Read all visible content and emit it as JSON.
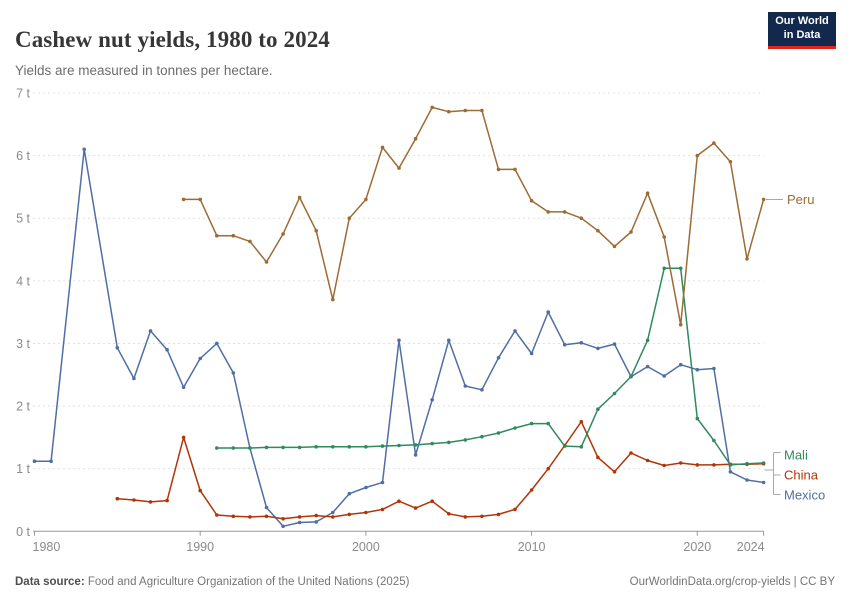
{
  "header": {
    "title": "Cashew nut yields, 1980 to 2024",
    "subtitle": "Yields are measured in tonnes per hectare."
  },
  "logo": {
    "line1": "Our World",
    "line2": "in Data",
    "bg_color": "#12294D",
    "accent_color": "#E0261C"
  },
  "footer": {
    "source_label": "Data source:",
    "source_text": " Food and Agriculture Organization of the United Nations (2025)",
    "right_text": "OurWorldinData.org/crop-yields | CC BY"
  },
  "chart_data": {
    "type": "line",
    "title": "Cashew nut yields, 1980 to 2024",
    "unit": "t",
    "ylabel": "tonnes per hectare",
    "ylim": [
      0,
      7
    ],
    "yticks": [
      0,
      1,
      2,
      3,
      4,
      5,
      6,
      7
    ],
    "ytick_suffix": " t",
    "xlim": [
      1980,
      2024
    ],
    "xticks": [
      1980,
      1990,
      2000,
      2010,
      2020,
      2024
    ],
    "grid": "horizontal-dashed",
    "legend_position": "right-end-labels",
    "axis_color": "#9a9a9a",
    "grid_color": "#e0e0e0",
    "tick_label_color": "#8a8a8a",
    "series": [
      {
        "name": "Mexico",
        "color": "#4F6FA4",
        "x": [
          1980,
          1981,
          1983,
          1985,
          1986,
          1987,
          1988,
          1989,
          1990,
          1991,
          1992,
          1993,
          1994,
          1995,
          1996,
          1997,
          1998,
          1999,
          2000,
          2001,
          2002,
          2003,
          2004,
          2005,
          2006,
          2007,
          2008,
          2009,
          2010,
          2011,
          2012,
          2013,
          2014,
          2015,
          2016,
          2017,
          2018,
          2019,
          2020,
          2021,
          2022,
          2023,
          2024
        ],
        "values": [
          1.12,
          1.12,
          6.1,
          2.93,
          2.44,
          3.2,
          2.9,
          2.3,
          2.76,
          3.0,
          2.53,
          1.33,
          0.38,
          0.08,
          0.14,
          0.15,
          0.3,
          0.6,
          0.7,
          0.78,
          3.05,
          1.22,
          2.1,
          3.05,
          2.32,
          2.26,
          2.77,
          3.2,
          2.84,
          3.5,
          2.98,
          3.01,
          2.92,
          2.99,
          2.47,
          2.63,
          2.48,
          2.66,
          2.58,
          2.6,
          0.95,
          0.82,
          0.78
        ]
      },
      {
        "name": "China",
        "color": "#B13507",
        "x": [
          1985,
          1986,
          1987,
          1988,
          1989,
          1990,
          1991,
          1992,
          1993,
          1994,
          1995,
          1996,
          1997,
          1998,
          1999,
          2000,
          2001,
          2002,
          2003,
          2004,
          2005,
          2006,
          2007,
          2008,
          2009,
          2010,
          2011,
          2012,
          2013,
          2014,
          2015,
          2016,
          2017,
          2018,
          2019,
          2020,
          2021,
          2022,
          2023,
          2024
        ],
        "values": [
          0.52,
          0.5,
          0.47,
          0.49,
          1.5,
          0.65,
          0.26,
          0.24,
          0.23,
          0.24,
          0.2,
          0.23,
          0.25,
          0.23,
          0.27,
          0.3,
          0.35,
          0.48,
          0.37,
          0.48,
          0.28,
          0.23,
          0.24,
          0.27,
          0.35,
          0.66,
          1.0,
          1.37,
          1.75,
          1.18,
          0.95,
          1.25,
          1.13,
          1.05,
          1.09,
          1.06,
          1.06,
          1.07,
          1.07,
          1.08
        ]
      },
      {
        "name": "Mali",
        "color": "#2F8A5E",
        "x": [
          1991,
          1992,
          1993,
          1994,
          1995,
          1996,
          1997,
          1998,
          1999,
          2000,
          2001,
          2002,
          2003,
          2004,
          2005,
          2006,
          2007,
          2008,
          2009,
          2010,
          2011,
          2012,
          2013,
          2014,
          2015,
          2016,
          2017,
          2018,
          2019,
          2020,
          2021,
          2022,
          2023,
          2024
        ],
        "values": [
          1.33,
          1.33,
          1.33,
          1.34,
          1.34,
          1.34,
          1.35,
          1.35,
          1.35,
          1.35,
          1.36,
          1.37,
          1.38,
          1.4,
          1.42,
          1.46,
          1.51,
          1.57,
          1.65,
          1.72,
          1.72,
          1.36,
          1.35,
          1.95,
          2.2,
          2.47,
          3.05,
          4.2,
          4.2,
          1.8,
          1.45,
          1.06,
          1.08,
          1.09
        ]
      },
      {
        "name": "Peru",
        "color": "#9D6B35",
        "x": [
          1989,
          1990,
          1991,
          1992,
          1993,
          1994,
          1995,
          1996,
          1997,
          1998,
          1999,
          2000,
          2001,
          2002,
          2003,
          2004,
          2005,
          2006,
          2007,
          2008,
          2009,
          2010,
          2011,
          2012,
          2013,
          2014,
          2015,
          2016,
          2017,
          2018,
          2019,
          2020,
          2021,
          2022,
          2023,
          2024
        ],
        "values": [
          5.3,
          5.3,
          4.72,
          4.72,
          4.63,
          4.3,
          4.75,
          5.33,
          4.8,
          3.7,
          5.0,
          5.3,
          6.13,
          5.8,
          6.27,
          6.77,
          6.7,
          6.72,
          6.72,
          5.78,
          5.78,
          5.28,
          5.1,
          5.1,
          5.0,
          4.8,
          4.55,
          4.78,
          5.4,
          4.7,
          3.3,
          6.0,
          6.2,
          5.9,
          4.35,
          5.3
        ]
      }
    ]
  }
}
